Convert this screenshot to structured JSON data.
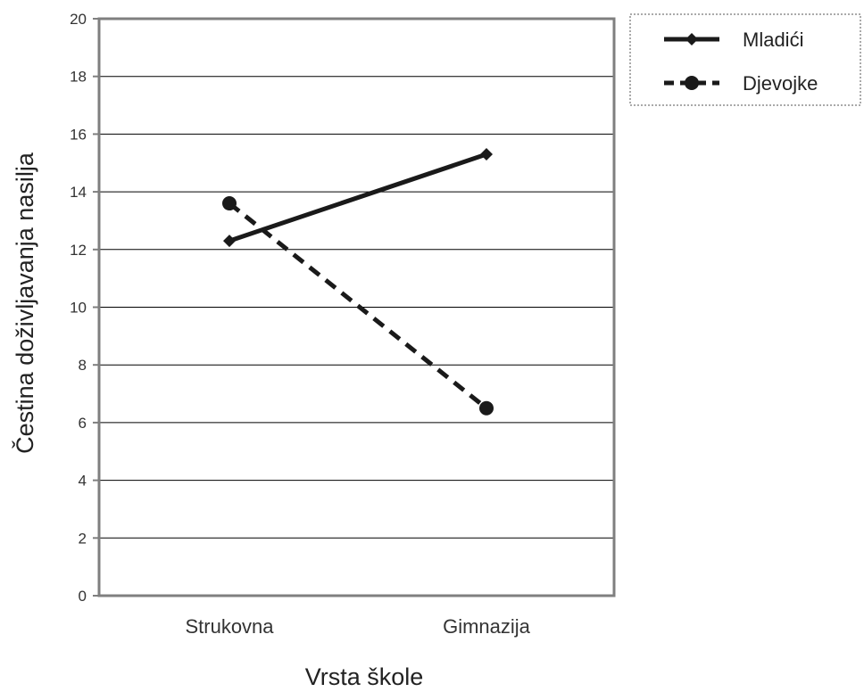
{
  "chart_data": {
    "type": "line",
    "categories": [
      "Strukovna",
      "Gimnazija"
    ],
    "series": [
      {
        "name": "Mladići",
        "values": [
          12.3,
          15.3
        ],
        "color": "#1a1a1a",
        "style": "solid",
        "marker": "diamond"
      },
      {
        "name": "Djevojke",
        "values": [
          13.6,
          6.5
        ],
        "color": "#1a1a1a",
        "style": "dashed",
        "marker": "circle"
      }
    ],
    "xlabel": "Vrsta škole",
    "ylabel": "Čestina doživljavanja nasilja",
    "ylim": [
      0,
      20
    ],
    "yticks": [
      0,
      2,
      4,
      6,
      8,
      10,
      12,
      14,
      16,
      18,
      20
    ],
    "grid": true,
    "legend_position": "right-top",
    "colors": {
      "grid": "#000000",
      "frame": "#808080",
      "text": "#333333"
    }
  }
}
